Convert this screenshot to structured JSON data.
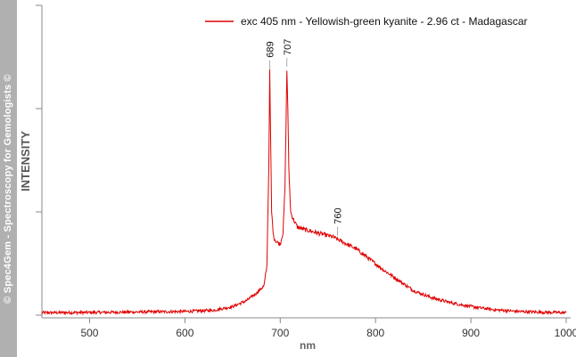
{
  "watermark": "© Spec4Gem - Spectroscopy for Gemologists ©",
  "chart_data": {
    "type": "line",
    "title": "",
    "xlabel": "nm",
    "ylabel": "INTENSITY",
    "xlim": [
      450,
      1000
    ],
    "ylim": [
      0,
      1
    ],
    "xticks": [
      500,
      600,
      700,
      800,
      900,
      1000
    ],
    "x_tick_labels": [
      "500",
      "600",
      "700",
      "800",
      "900",
      "1000"
    ],
    "grid": false,
    "legend_position": "top-right",
    "series": [
      {
        "name": "exc 405 nm - Yellowish-green kyanite - 2.96 ct - Madagascar",
        "color": "#e00000",
        "noise": 0.006,
        "x": [
          450,
          500,
          550,
          600,
          630,
          650,
          665,
          675,
          683,
          686,
          688,
          689,
          690,
          691,
          693,
          696,
          700,
          703,
          705,
          707,
          708,
          709,
          711,
          714,
          718,
          725,
          735,
          745,
          755,
          760,
          770,
          780,
          790,
          800,
          810,
          825,
          840,
          860,
          880,
          900,
          925,
          950,
          975,
          1000
        ],
        "y": [
          0.01,
          0.011,
          0.013,
          0.015,
          0.02,
          0.035,
          0.06,
          0.09,
          0.12,
          0.2,
          0.6,
          0.99,
          0.7,
          0.42,
          0.32,
          0.3,
          0.29,
          0.34,
          0.52,
          1.0,
          0.85,
          0.6,
          0.42,
          0.39,
          0.36,
          0.35,
          0.34,
          0.33,
          0.32,
          0.31,
          0.29,
          0.27,
          0.24,
          0.21,
          0.18,
          0.14,
          0.1,
          0.07,
          0.05,
          0.035,
          0.022,
          0.015,
          0.012,
          0.01
        ]
      }
    ],
    "annotations": [
      {
        "x": 689,
        "label": "689",
        "y": 0.99
      },
      {
        "x": 707,
        "label": "707",
        "y": 1.0
      },
      {
        "x": 760,
        "label": "760",
        "y": 0.31
      }
    ]
  }
}
